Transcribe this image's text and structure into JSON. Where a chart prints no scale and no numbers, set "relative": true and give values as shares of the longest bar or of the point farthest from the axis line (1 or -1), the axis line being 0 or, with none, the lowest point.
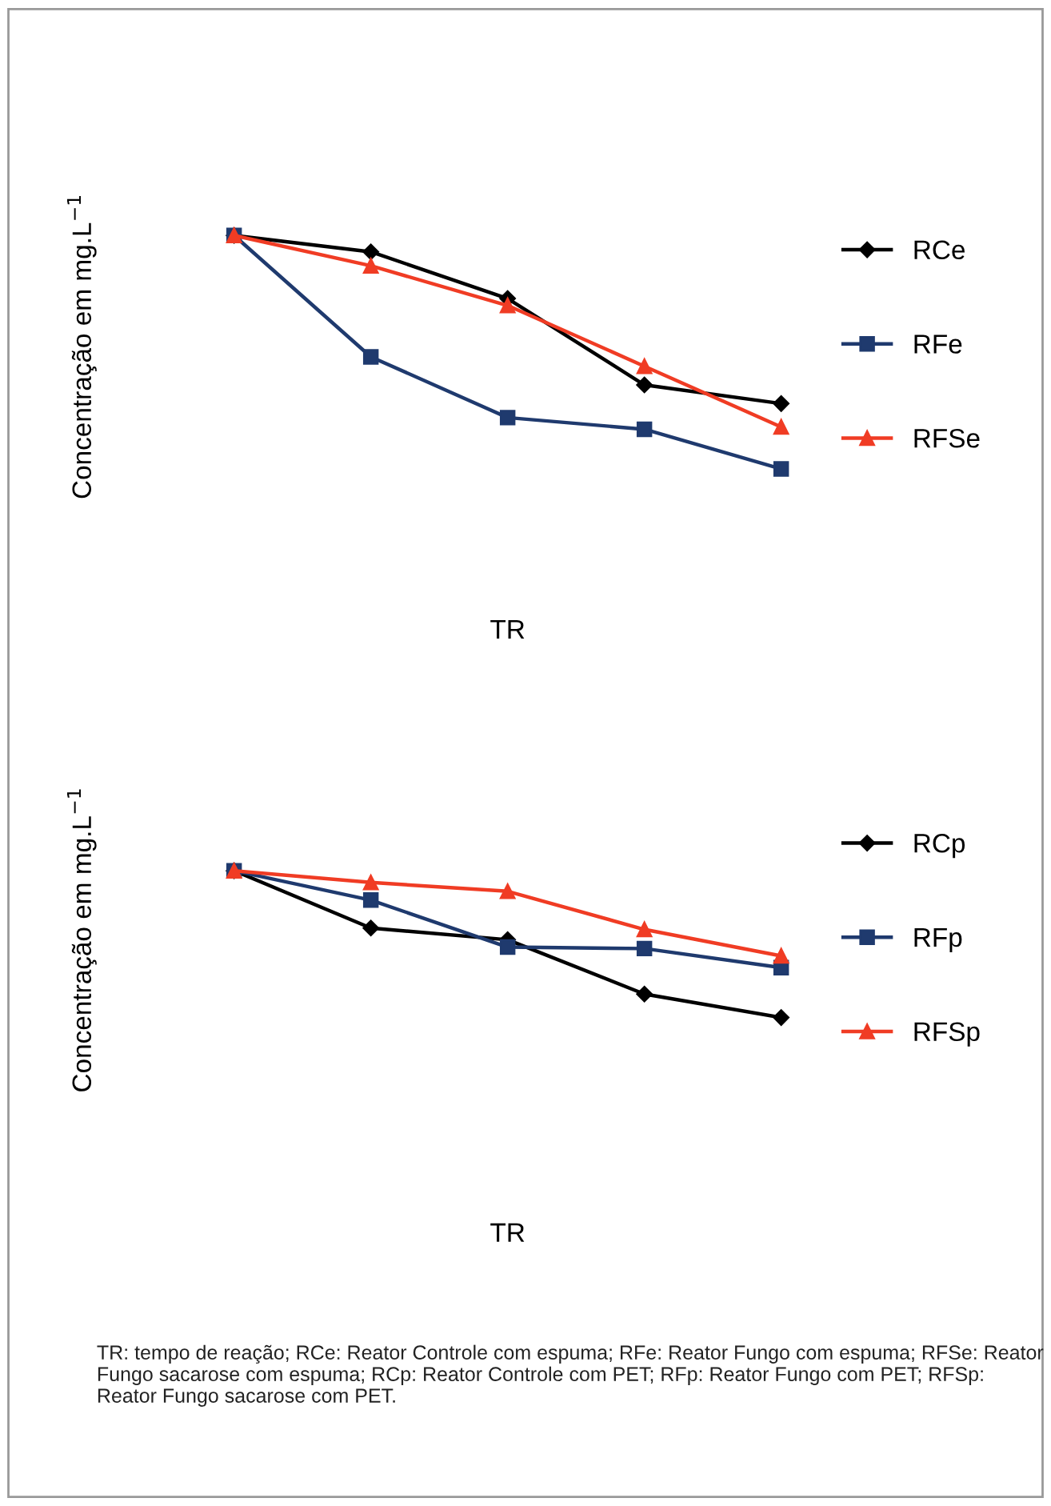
{
  "chart_data": [
    {
      "type": "line",
      "relative": true,
      "xlabel": "TR",
      "ylabel": "Concentração em mg.L$^{−1}$",
      "categories": [
        null,
        null,
        null,
        null,
        null
      ],
      "legend": "right",
      "grid": false,
      "tick_labels": false,
      "line_style": "solid",
      "series": [
        {
          "name": "RCe",
          "color": "#000000",
          "marker": "diamond",
          "values": [
            1,
            0.93,
            0.73,
            0.36,
            0.28
          ]
        },
        {
          "name": "RFe",
          "color": "#1f3a6e",
          "marker": "square",
          "values": [
            1,
            0.48,
            0.22,
            0.17,
            0
          ]
        },
        {
          "name": "RFSe",
          "color": "#f03c24",
          "marker": "triangle",
          "values": [
            1,
            0.87,
            0.7,
            0.44,
            0.18
          ]
        }
      ]
    },
    {
      "type": "line",
      "relative": true,
      "xlabel": "TR",
      "ylabel": "Concentração em mg.L$^{−1}$",
      "categories": [
        null,
        null,
        null,
        null,
        null
      ],
      "legend": "right",
      "grid": false,
      "tick_labels": false,
      "line_style": "solid",
      "series": [
        {
          "name": "RCp",
          "color": "#000000",
          "marker": "diamond",
          "values": [
            1,
            0.61,
            0.53,
            0.16,
            0
          ]
        },
        {
          "name": "RFp",
          "color": "#1f3a6e",
          "marker": "square",
          "values": [
            1,
            0.8,
            0.48,
            0.47,
            0.34
          ]
        },
        {
          "name": "RFSp",
          "color": "#f03c24",
          "marker": "triangle",
          "values": [
            1,
            0.92,
            0.86,
            0.6,
            0.42
          ]
        }
      ],
      "annotations": [
        "TR: tempo de reação; RCe: Reator Controle com espuma; RFe: Reator Fungo com espuma; RFSe: Reator Fungo sacarose com espuma; RCp: Reator Controle com PET; RFp: Reator Fungo com PET; RFSp: Reator Fungo sacarose com PET."
      ]
    }
  ]
}
